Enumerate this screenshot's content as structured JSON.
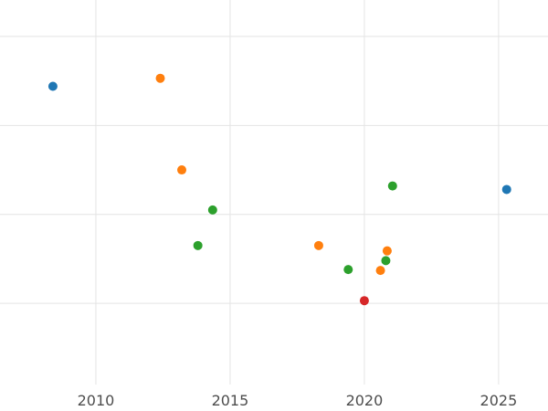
{
  "chart_data": {
    "type": "scatter",
    "title": "",
    "xlabel": "",
    "ylabel": "",
    "grid": true,
    "legend": "none",
    "y_axis_labels_visible": false,
    "y_units": "unlabeled relative scale estimated from horizontal gridlines (gridlines at 1,2,3,4)",
    "xlim": [
      2006.43,
      2026.84
    ],
    "ylim": [
      -0.21,
      4.41
    ],
    "x_ticks": [
      {
        "value": 2010,
        "label": "2010"
      },
      {
        "value": 2015,
        "label": "2015"
      },
      {
        "value": 2020,
        "label": "2020"
      },
      {
        "value": 2025,
        "label": "2025"
      }
    ],
    "y_gridline_values": [
      1,
      2,
      3,
      4
    ],
    "marker": {
      "shape": "circle",
      "radius_px": 5
    },
    "series": [
      {
        "name": "blue",
        "color": "#1f77b4",
        "points": [
          {
            "x": 2008.4,
            "y": 3.44
          },
          {
            "x": 2025.3,
            "y": 2.28
          }
        ]
      },
      {
        "name": "orange",
        "color": "#ff7f0e",
        "points": [
          {
            "x": 2012.4,
            "y": 3.53
          },
          {
            "x": 2013.2,
            "y": 2.5
          },
          {
            "x": 2018.3,
            "y": 1.65
          },
          {
            "x": 2020.6,
            "y": 1.37
          },
          {
            "x": 2020.85,
            "y": 1.59
          }
        ]
      },
      {
        "name": "green",
        "color": "#2ca02c",
        "points": [
          {
            "x": 2013.8,
            "y": 1.65
          },
          {
            "x": 2014.35,
            "y": 2.05
          },
          {
            "x": 2019.4,
            "y": 1.38
          },
          {
            "x": 2020.8,
            "y": 1.48
          },
          {
            "x": 2021.05,
            "y": 2.32
          }
        ]
      },
      {
        "name": "red",
        "color": "#d62728",
        "points": [
          {
            "x": 2020.0,
            "y": 1.03
          }
        ]
      }
    ]
  },
  "axis_style": {
    "tick_label_color": "#4d4d4d",
    "gridline_color": "#e4e4e4",
    "background": "#ffffff"
  }
}
